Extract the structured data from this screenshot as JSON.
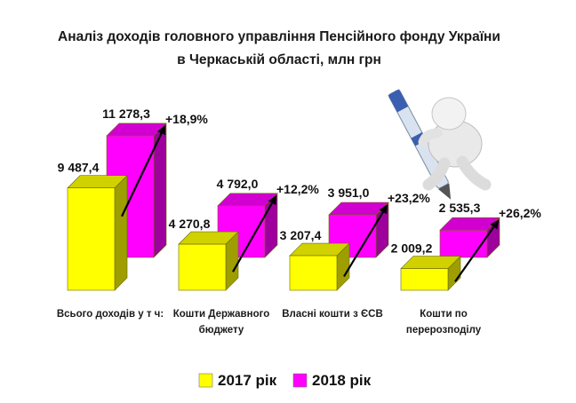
{
  "chart_data": {
    "type": "bar",
    "title_lines": [
      "Аналіз доходів головного управління Пенсійного фонду України",
      "в Черкаській області, млн грн"
    ],
    "categories": [
      [
        "Всього доходів у т ч:"
      ],
      [
        "Кошти Державного",
        "бюджету"
      ],
      [
        "Власні кошти з ЄСВ"
      ],
      [
        "Кошти по",
        "перерозподілу"
      ]
    ],
    "series": [
      {
        "name": "2017 рік",
        "color": "#ffff00",
        "values": [
          9487.4,
          4270.8,
          3207.4,
          2009.2
        ],
        "labels": [
          "9 487,4",
          "4 270,8",
          "3 207,4",
          "2 009,2"
        ]
      },
      {
        "name": "2018 рік",
        "color": "#ff00ff",
        "values": [
          11278.3,
          4792.0,
          3951.0,
          2535.3
        ],
        "labels": [
          "11 278,3",
          "4 792,0",
          "3 951,0",
          "2 535,3"
        ]
      }
    ],
    "growth_labels": [
      "+18,9%",
      "+12,2%",
      "+23,2%",
      "+26,2%"
    ],
    "legend_position": "bottom",
    "grid": false,
    "style": "3d-columns"
  },
  "decoration": {
    "icon": "figure-with-pen-icon"
  }
}
